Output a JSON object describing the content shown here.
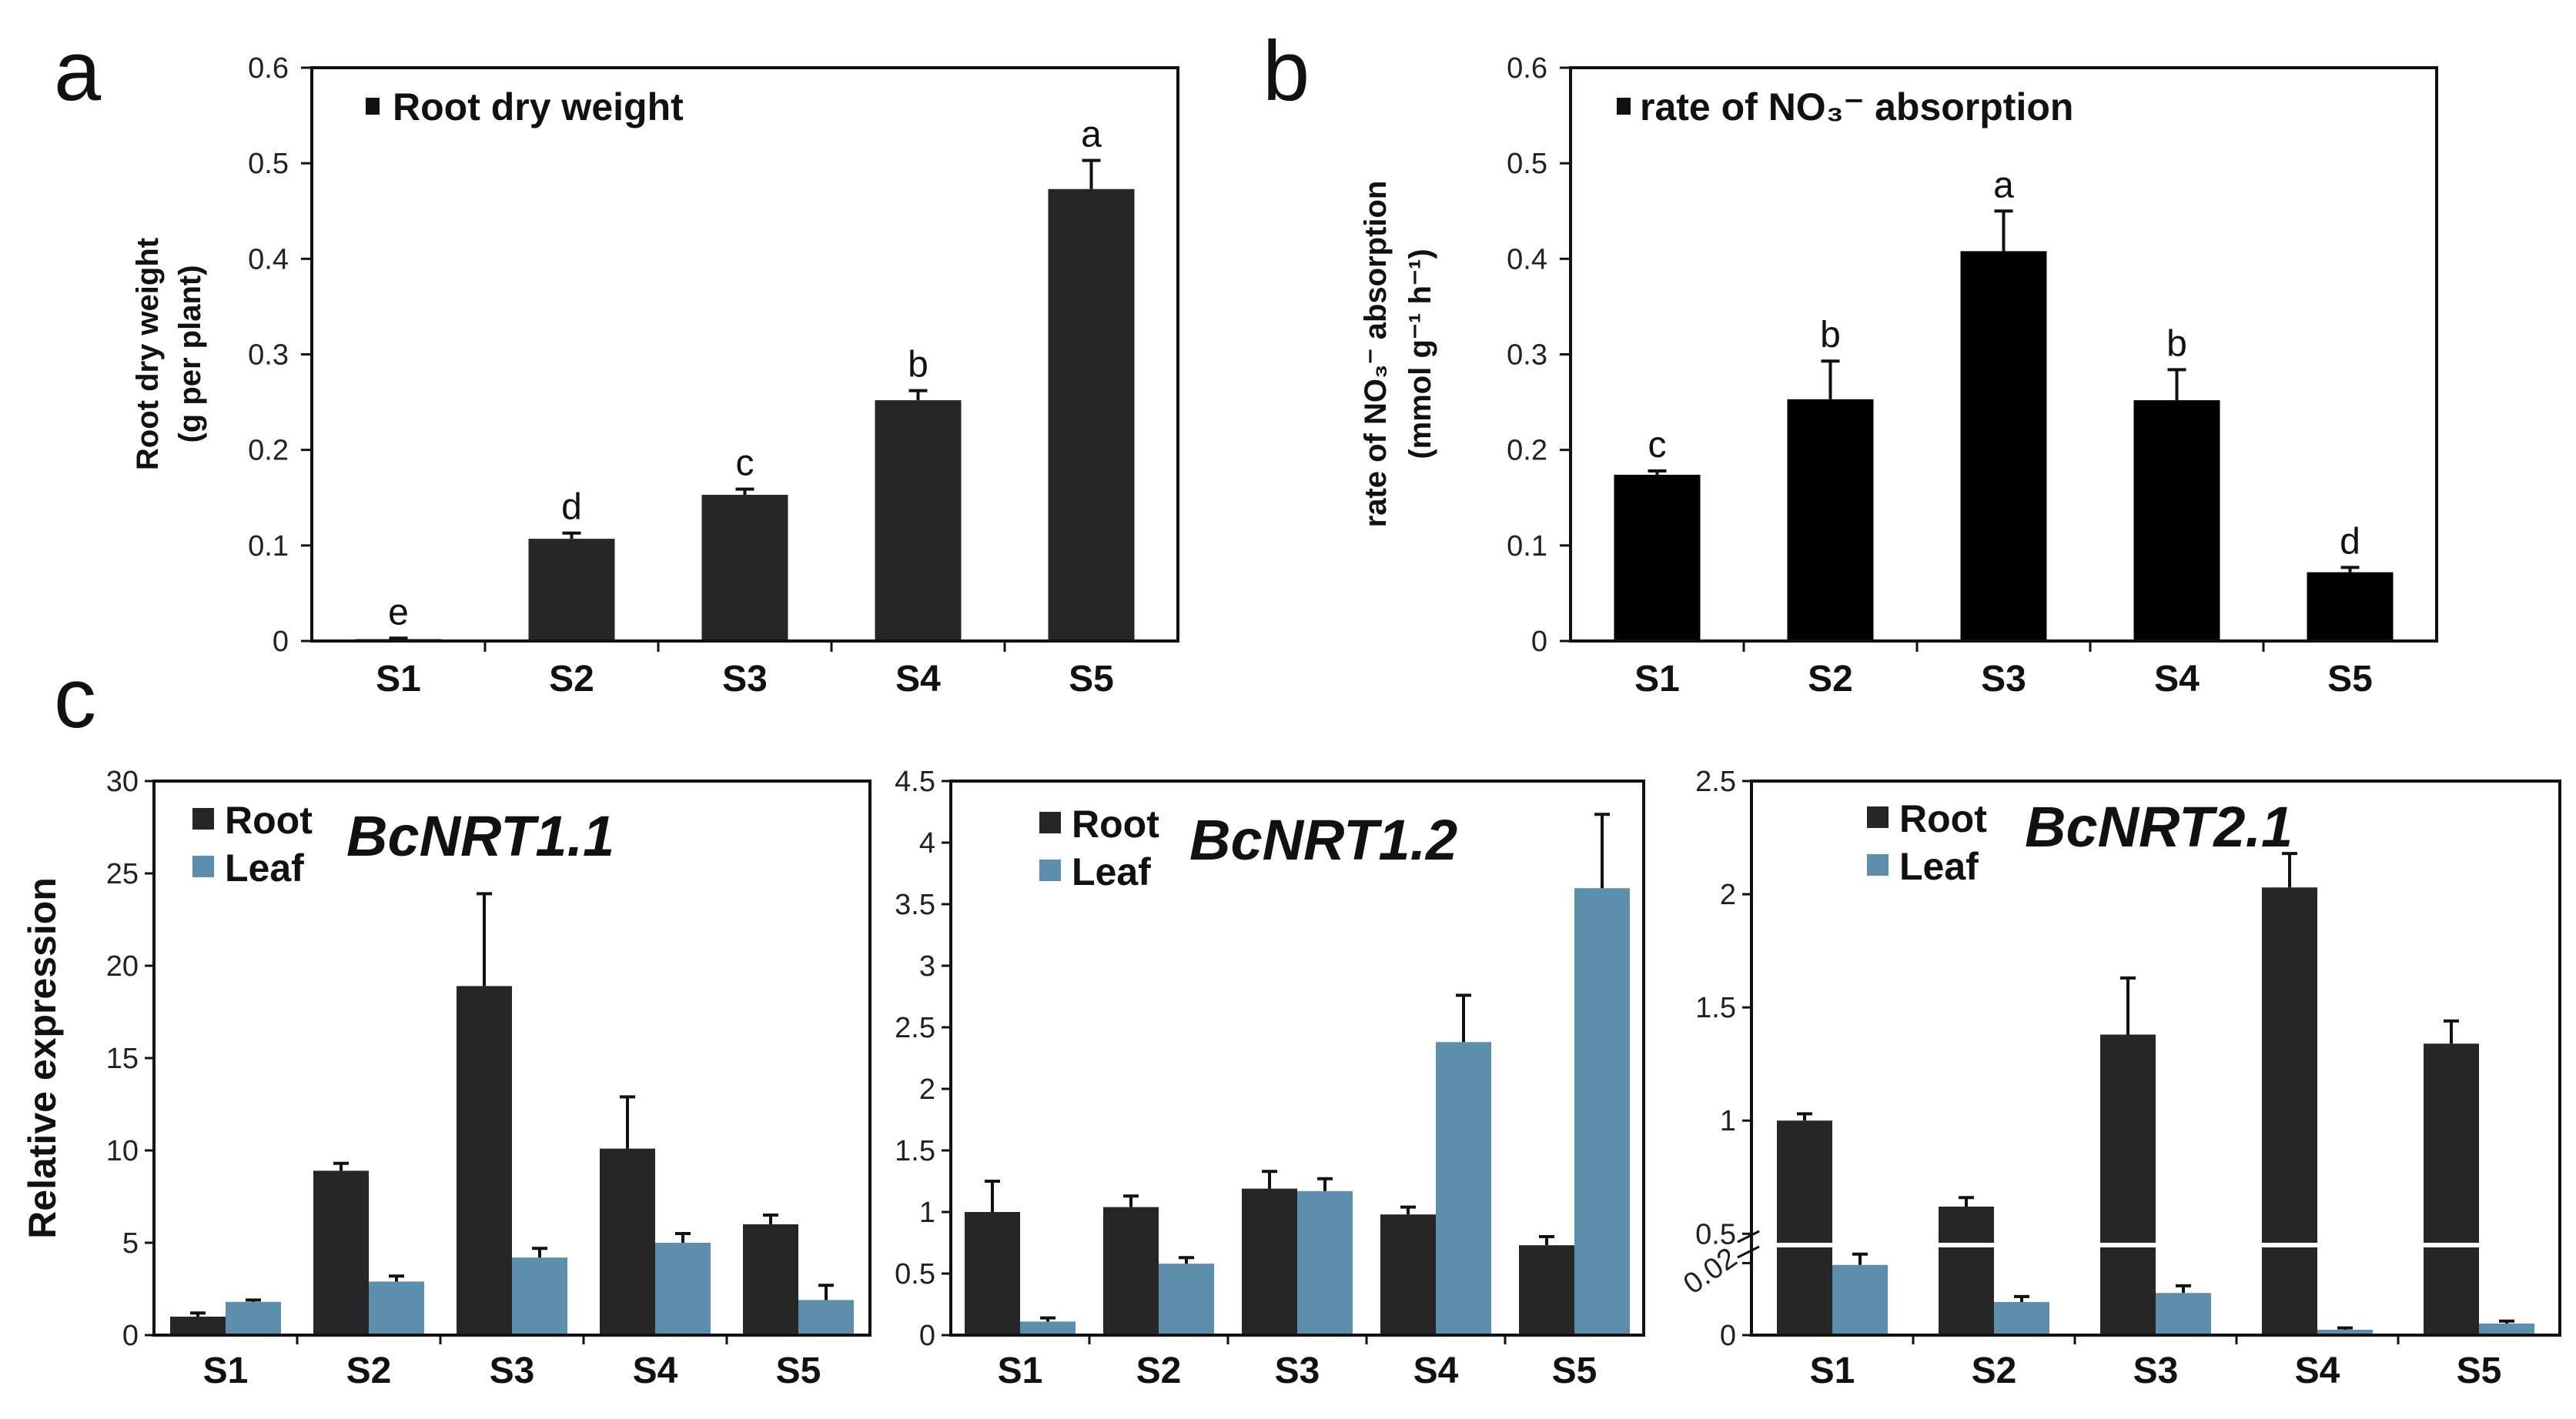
{
  "figure": {
    "panel_labels": [
      "a",
      "b",
      "c"
    ]
  },
  "chart_data": [
    {
      "id": "a",
      "type": "bar",
      "title": "Root dry weight",
      "legend": [
        "Root dry weight"
      ],
      "ylabel": [
        "Root dry weight",
        "(g per plant)"
      ],
      "xlabel": "",
      "categories": [
        "S1",
        "S2",
        "S3",
        "S4",
        "S5"
      ],
      "values": [
        0.002,
        0.107,
        0.153,
        0.252,
        0.473
      ],
      "errors": [
        0.001,
        0.006,
        0.006,
        0.01,
        0.03
      ],
      "significance": [
        "e",
        "d",
        "c",
        "b",
        "a"
      ],
      "ylim": [
        0,
        0.6
      ],
      "yticks": [
        "0",
        "0.1",
        "0.2",
        "0.3",
        "0.4",
        "0.5",
        "0.6"
      ],
      "color": "#262626"
    },
    {
      "id": "b",
      "type": "bar",
      "title": "rate of NO₃⁻ absorption",
      "legend": [
        "rate of NO₃⁻ absorption"
      ],
      "ylabel": [
        "rate of NO₃⁻ absorption",
        "(mmol g⁻¹ h⁻¹)"
      ],
      "xlabel": "",
      "categories": [
        "S1",
        "S2",
        "S3",
        "S4",
        "S5"
      ],
      "values": [
        0.174,
        0.253,
        0.408,
        0.252,
        0.072
      ],
      "errors": [
        0.004,
        0.04,
        0.042,
        0.032,
        0.005
      ],
      "significance": [
        "c",
        "b",
        "a",
        "b",
        "d"
      ],
      "ylim": [
        0,
        0.6
      ],
      "yticks": [
        "0",
        "0.1",
        "0.2",
        "0.3",
        "0.4",
        "0.5",
        "0.6"
      ],
      "color": "#000000"
    },
    {
      "id": "c1",
      "type": "bar",
      "title": "BcNRT1.1",
      "ylabel": "Relative expression",
      "xlabel": "",
      "categories": [
        "S1",
        "S2",
        "S3",
        "S4",
        "S5"
      ],
      "series": [
        {
          "name": "Root",
          "values": [
            1.0,
            8.9,
            18.9,
            10.1,
            6.0
          ],
          "errors": [
            0.2,
            0.4,
            5.0,
            2.8,
            0.5
          ],
          "color": "#262626"
        },
        {
          "name": "Leaf",
          "values": [
            1.8,
            2.9,
            4.2,
            5.0,
            1.9
          ],
          "errors": [
            0.1,
            0.3,
            0.5,
            0.5,
            0.8
          ],
          "color": "#5b8fad"
        }
      ],
      "ylim": [
        0,
        30
      ],
      "yticks": [
        "0",
        "5",
        "10",
        "15",
        "20",
        "25",
        "30"
      ]
    },
    {
      "id": "c2",
      "type": "bar",
      "title": "BcNRT1.2",
      "ylabel": "",
      "xlabel": "",
      "categories": [
        "S1",
        "S2",
        "S3",
        "S4",
        "S5"
      ],
      "series": [
        {
          "name": "Root",
          "values": [
            1.0,
            1.04,
            1.19,
            0.98,
            0.73
          ],
          "errors": [
            0.25,
            0.09,
            0.14,
            0.06,
            0.07
          ],
          "color": "#262626"
        },
        {
          "name": "Leaf",
          "values": [
            0.11,
            0.58,
            1.17,
            2.38,
            3.63
          ],
          "errors": [
            0.03,
            0.05,
            0.1,
            0.38,
            0.6
          ],
          "color": "#5b8fad"
        }
      ],
      "ylim": [
        0,
        4.5
      ],
      "yticks": [
        "0",
        "0.5",
        "1",
        "1.5",
        "2",
        "2.5",
        "3",
        "3.5",
        "4",
        "4.5"
      ]
    },
    {
      "id": "c3",
      "type": "bar",
      "title": "BcNRT2.1",
      "ylabel": "",
      "xlabel": "",
      "broken_axis": true,
      "categories": [
        "S1",
        "S2",
        "S3",
        "S4",
        "S5"
      ],
      "series": [
        {
          "name": "Root",
          "values": [
            1.0,
            0.62,
            1.38,
            2.03,
            1.34
          ],
          "errors": [
            0.03,
            0.04,
            0.25,
            0.15,
            0.1
          ],
          "color": "#262626"
        },
        {
          "name": "Leaf",
          "values": [
            0.0195,
            0.0092,
            0.0117,
            0.0015,
            0.0032
          ],
          "errors": [
            0.003,
            0.0015,
            0.002,
            0.0005,
            0.0007
          ],
          "color": "#5b8fad"
        }
      ],
      "ylim_lower": [
        0,
        0.025
      ],
      "ylim_upper": [
        0.45,
        2.5
      ],
      "yticks_lower": [
        "0",
        "0.02"
      ],
      "yticks_upper": [
        "0.5",
        "1",
        "1.5",
        "2",
        "2.5"
      ]
    }
  ]
}
